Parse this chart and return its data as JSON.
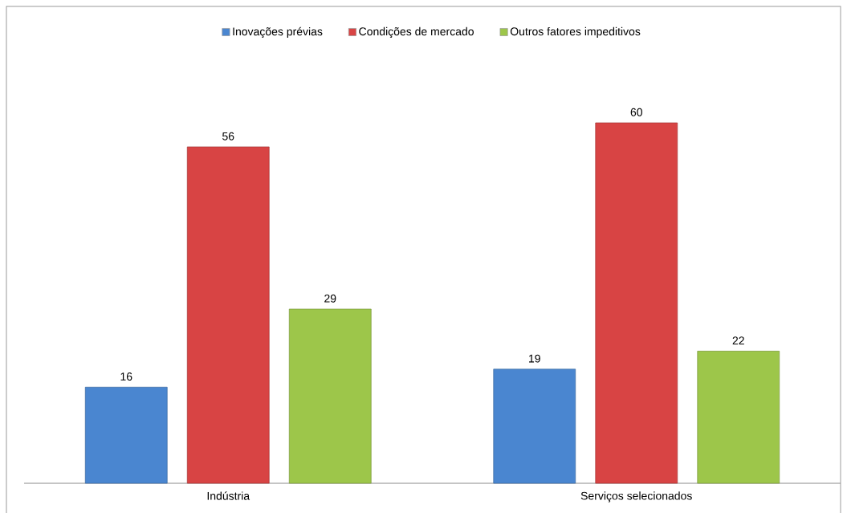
{
  "chart_data": {
    "type": "bar",
    "categories": [
      "Indústria",
      "Serviços selecionados"
    ],
    "series": [
      {
        "name": "Inovações prévias",
        "color": "#4a86d0",
        "values": [
          16,
          19
        ]
      },
      {
        "name": "Condições de mercado",
        "color": "#d84444",
        "values": [
          56,
          60
        ]
      },
      {
        "name": "Outros fatores impeditivos",
        "color": "#9dc64a",
        "values": [
          29,
          22
        ]
      }
    ],
    "data_labels": true,
    "legend": "top",
    "tick_labels": "x"
  }
}
